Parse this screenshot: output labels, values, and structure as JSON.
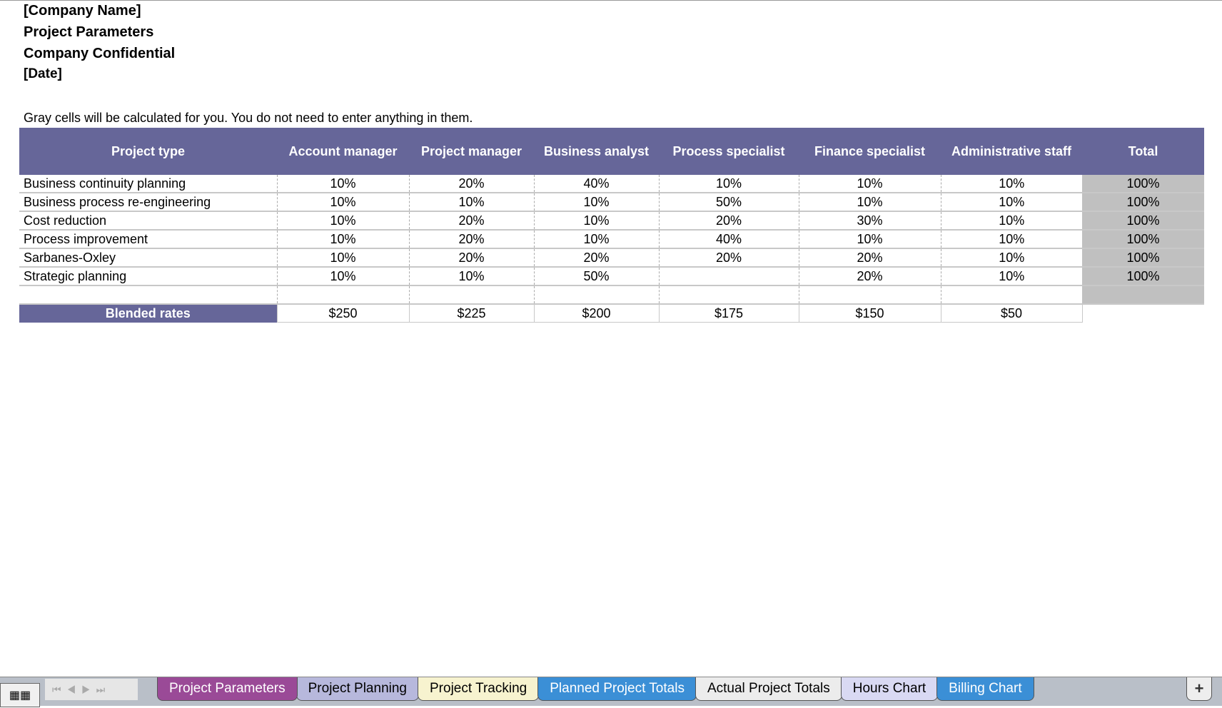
{
  "header": {
    "company": "[Company Name]",
    "title": "Project Parameters",
    "confidential": "Company Confidential",
    "date": "[Date]"
  },
  "note": "Gray cells will be calculated for you. You do not need to enter anything in them.",
  "table": {
    "columns": [
      "Project type",
      "Account manager",
      "Project manager",
      "Business analyst",
      "Process specialist",
      "Finance specialist",
      "Administrative staff",
      "Total"
    ],
    "rows": [
      {
        "name": "Business continuity planning",
        "values": [
          "10%",
          "20%",
          "40%",
          "10%",
          "10%",
          "10%"
        ],
        "total": "100%"
      },
      {
        "name": "Business process re-engineering",
        "values": [
          "10%",
          "10%",
          "10%",
          "50%",
          "10%",
          "10%"
        ],
        "total": "100%"
      },
      {
        "name": "Cost reduction",
        "values": [
          "10%",
          "20%",
          "10%",
          "20%",
          "30%",
          "10%"
        ],
        "total": "100%"
      },
      {
        "name": "Process improvement",
        "values": [
          "10%",
          "20%",
          "10%",
          "40%",
          "10%",
          "10%"
        ],
        "total": "100%"
      },
      {
        "name": "Sarbanes-Oxley",
        "values": [
          "10%",
          "20%",
          "20%",
          "20%",
          "20%",
          "10%"
        ],
        "total": "100%"
      },
      {
        "name": "Strategic planning",
        "values": [
          "10%",
          "10%",
          "50%",
          "",
          "20%",
          "10%"
        ],
        "total": "100%"
      }
    ],
    "blended": {
      "label": "Blended rates",
      "values": [
        "$250",
        "$225",
        "$200",
        "$175",
        "$150",
        "$50"
      ]
    }
  },
  "tabs": [
    {
      "label": "Project Parameters",
      "color": "#9a4a97",
      "text": "#ffffff",
      "active": true
    },
    {
      "label": "Project Planning",
      "color": "#b7b8dc",
      "text": "#000000"
    },
    {
      "label": "Project Tracking",
      "color": "#f7f3cf",
      "text": "#000000"
    },
    {
      "label": "Planned Project Totals",
      "color": "#3b8fd6",
      "text": "#ffffff"
    },
    {
      "label": "Actual Project Totals",
      "color": "#ececec",
      "text": "#000000"
    },
    {
      "label": "Hours Chart",
      "color": "#d9d9f3",
      "text": "#000000"
    },
    {
      "label": "Billing Chart",
      "color": "#3b8fd6",
      "text": "#ffffff"
    }
  ],
  "add_tab": "+",
  "colors": {
    "header": "#666699",
    "calculated": "#c0c0c0"
  }
}
